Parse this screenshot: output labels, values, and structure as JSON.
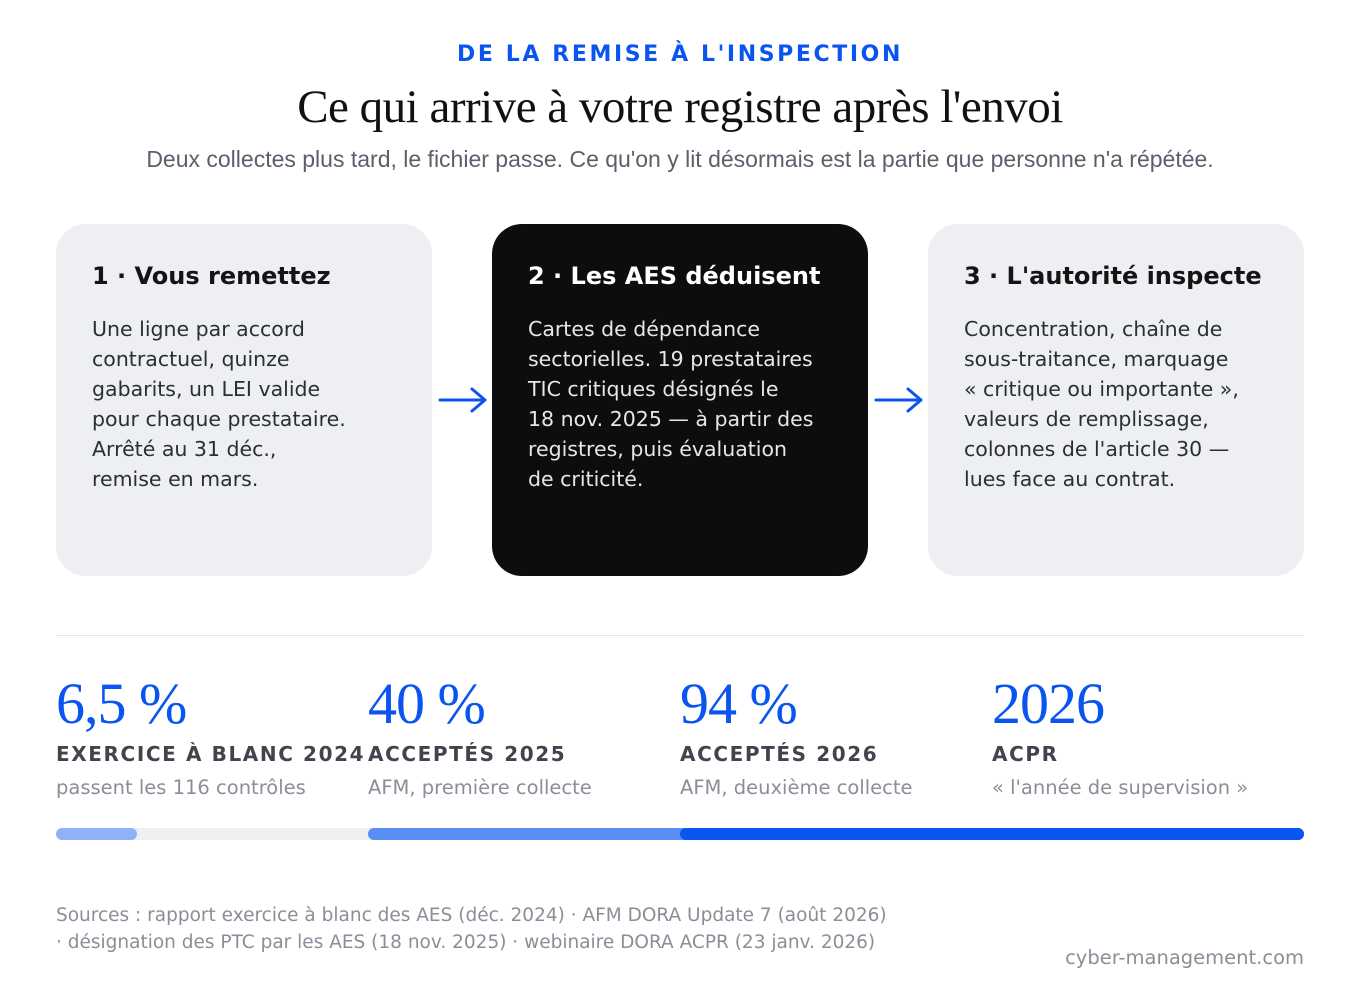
{
  "header": {
    "kicker": "DE LA REMISE À L'INSPECTION",
    "title": "Ce qui arrive à votre registre après l'envoi",
    "subtitle": "Deux collectes plus tard, le fichier passe. Ce qu'on y lit désormais est la partie que personne n'a répétée."
  },
  "steps": [
    {
      "title": "1 · Vous remettez",
      "body": [
        "Une ligne par accord",
        "contractuel, quinze",
        "gabarits, un LEI valide",
        "pour chaque prestataire.",
        "Arrêté au 31 déc.,",
        "remise en mars."
      ]
    },
    {
      "title": "2 · Les AES déduisent",
      "body": [
        "Cartes de dépendance",
        "sectorielles. 19 prestataires",
        "TIC critiques désignés le",
        "18 nov. 2025 — à partir des",
        "registres, puis évaluation",
        "de criticité."
      ]
    },
    {
      "title": "3 · L'autorité inspecte",
      "body": [
        "Concentration, chaîne de",
        "sous-traitance, marquage",
        "« critique ou importante »,",
        "valeurs de remplissage,",
        "colonnes de l'article 30 —",
        "lues face au contrat."
      ]
    }
  ],
  "stats": [
    {
      "value": "6,5 %",
      "label": "EXERCICE À BLANC 2024",
      "desc": "passent les 116 contrôles",
      "fill": 0.065
    },
    {
      "value": "40 %",
      "label": "ACCEPTÉS 2025",
      "desc": "AFM, première collecte",
      "fill": 0.4
    },
    {
      "value": "94 %",
      "label": "ACCEPTÉS 2026",
      "desc": "AFM, deuxième collecte",
      "fill": 0.94
    },
    {
      "value": "2026",
      "label": "ACPR",
      "desc": "« l'année de supervision »"
    }
  ],
  "footer": {
    "sources": [
      "Sources : rapport exercice à blanc des AES (déc. 2024) · AFM DORA Update 7 (août 2026)",
      "· désignation des PTC par les AES (18 nov. 2025) · webinaire DORA ACPR (23 janv. 2026)"
    ],
    "site": "cyber-management.com"
  },
  "colors": {
    "accent": "#0a55f0",
    "bar_light": "#8fb1f7",
    "bar_mid": "#5a8ef6",
    "bar_dark": "#0a55f0",
    "card_light": "#eeeff3",
    "card_dark": "#0d0d0e"
  }
}
